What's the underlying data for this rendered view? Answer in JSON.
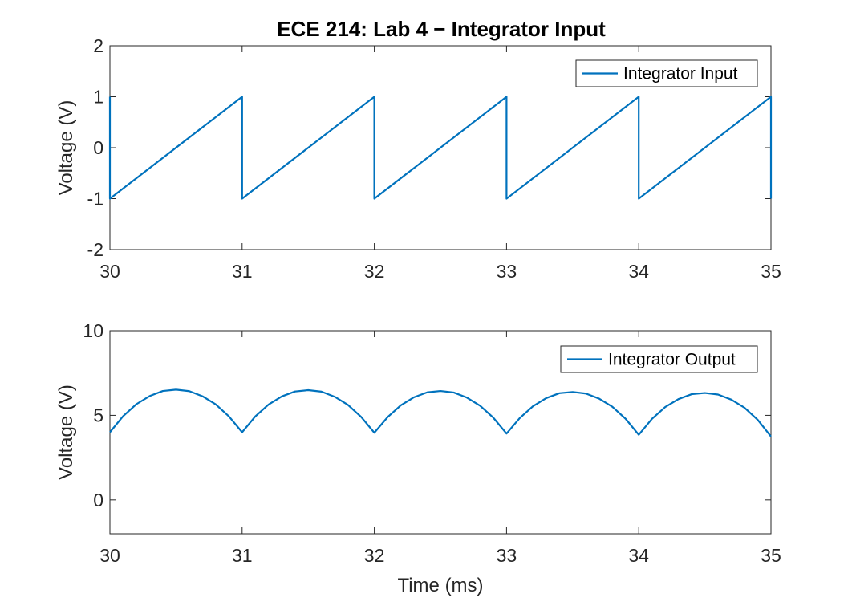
{
  "chart_data": [
    {
      "type": "line",
      "title": "ECE 214: Lab 4 − Integrator Input",
      "xlabel": "",
      "ylabel": "Voltage (V)",
      "xlim": [
        30,
        35
      ],
      "ylim": [
        -2,
        2
      ],
      "xticks": [
        "30",
        "31",
        "32",
        "33",
        "34",
        "35"
      ],
      "yticks": [
        "-2",
        "-1",
        "0",
        "1",
        "2"
      ],
      "grid": true,
      "legend_position": "top-right",
      "color": "#0072bd",
      "series": [
        {
          "name": "Integrator Input",
          "x": [
            30,
            30,
            31,
            31,
            32,
            32,
            33,
            33,
            34,
            34,
            35,
            35
          ],
          "y": [
            1,
            -1,
            1,
            -1,
            1,
            -1,
            1,
            -1,
            1,
            -1,
            1,
            -1
          ]
        }
      ]
    },
    {
      "type": "line",
      "title": "",
      "xlabel": "Time (ms)",
      "ylabel": "Voltage (V)",
      "xlim": [
        30,
        35
      ],
      "ylim": [
        -2,
        10
      ],
      "xticks": [
        "30",
        "31",
        "32",
        "33",
        "34",
        "35"
      ],
      "yticks": [
        "0",
        "5",
        "10"
      ],
      "grid": true,
      "legend_position": "top-right",
      "color": "#0072bd",
      "series": [
        {
          "name": "Integrator Output",
          "x": [
            30,
            30.1,
            30.2,
            30.3,
            30.4,
            30.5,
            30.6,
            30.7,
            30.8,
            30.9,
            31,
            31.1,
            31.2,
            31.3,
            31.4,
            31.5,
            31.6,
            31.7,
            31.8,
            31.9,
            32,
            32.1,
            32.2,
            32.3,
            32.4,
            32.5,
            32.6,
            32.7,
            32.8,
            32.9,
            33,
            33.1,
            33.2,
            33.3,
            33.4,
            33.5,
            33.6,
            33.7,
            33.8,
            33.9,
            34,
            34.1,
            34.2,
            34.3,
            34.4,
            34.5,
            34.6,
            34.7,
            34.8,
            34.9,
            35
          ],
          "y": [
            4.0,
            4.95,
            5.66,
            6.14,
            6.44,
            6.52,
            6.43,
            6.13,
            5.65,
            4.94,
            4.0,
            4.94,
            5.64,
            6.12,
            6.41,
            6.49,
            6.4,
            6.1,
            5.62,
            4.91,
            3.97,
            4.89,
            5.59,
            6.07,
            6.36,
            6.44,
            6.35,
            6.05,
            5.57,
            4.86,
            3.92,
            4.84,
            5.54,
            6.02,
            6.31,
            6.38,
            6.29,
            5.99,
            5.51,
            4.8,
            3.85,
            4.79,
            5.49,
            5.96,
            6.25,
            6.32,
            6.23,
            5.93,
            5.45,
            4.73,
            3.75
          ]
        }
      ]
    }
  ]
}
